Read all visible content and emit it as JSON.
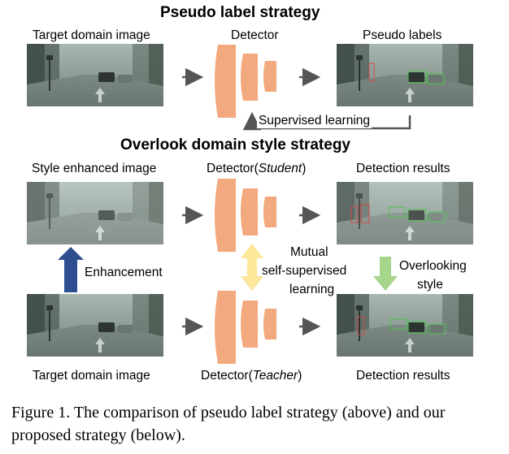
{
  "top": {
    "title": "Pseudo label strategy",
    "source_label": "Target domain image",
    "detector_label": "Detector",
    "output_label": "Pseudo labels",
    "feedback_label": "Supervised learning"
  },
  "bottom": {
    "title": "Overlook domain style strategy",
    "enhanced_label": "Style enhanced  image",
    "student_label_prefix": "Detector(",
    "student_label_role": "Student",
    "student_label_suffix": ")",
    "student_results_label": "Detection results",
    "enhancement_label": "Enhancement",
    "mutual_label_lines": [
      "Mutual",
      "self-supervised",
      "learning"
    ],
    "overlook_label_lines": [
      "Overlooking",
      "style"
    ],
    "source_label": "Target domain image",
    "teacher_label_prefix": "Detector(",
    "teacher_label_role": "Teacher",
    "teacher_label_suffix": ")",
    "teacher_results_label": "Detection results"
  },
  "caption": {
    "lines": [
      "Figure 1.  The comparison of pseudo label strategy (above) and our",
      "proposed strategy (below)."
    ]
  },
  "colors": {
    "detector": "#F2A97D",
    "arrow": "#555555",
    "enhancement_arrow": "#2E4F8F",
    "mutual_arrow": "#FCE79A",
    "overlook_arrow": "#A6D58C",
    "box_red": "#D24A4A",
    "box_green": "#4FC04F"
  }
}
